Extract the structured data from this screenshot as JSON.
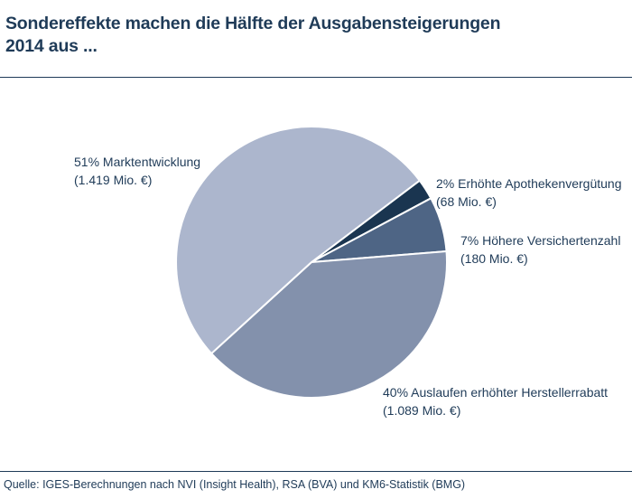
{
  "title_line1": "Sondereffekte machen die Hälfte der Ausgabensteigerungen",
  "title_line2": "2014 aus ...",
  "source": "Quelle: IGES-Berechnungen nach NVI (Insight Health), RSA (BVA) und KM6-Statistik (BMG)",
  "chart_data": {
    "type": "pie",
    "slices": [
      {
        "percent_label": "2%",
        "label": "Erhöhte Apothekenvergütung",
        "amount": "(68 Mio. €)",
        "value": 68,
        "color": "#1a3550"
      },
      {
        "percent_label": "7%",
        "label": "Höhere Versichertenzahl",
        "amount": "(180 Mio. €)",
        "value": 180,
        "color": "#4e6585"
      },
      {
        "percent_label": "40%",
        "label": "Auslaufen erhöhter Herstellerrabatt",
        "amount": "(1.089 Mio. €)",
        "value": 1089,
        "color": "#8391ac"
      },
      {
        "percent_label": "51%",
        "label": "Marktentwicklung",
        "amount": "(1.419 Mio. €)",
        "value": 1419,
        "color": "#acb6cd"
      }
    ]
  }
}
